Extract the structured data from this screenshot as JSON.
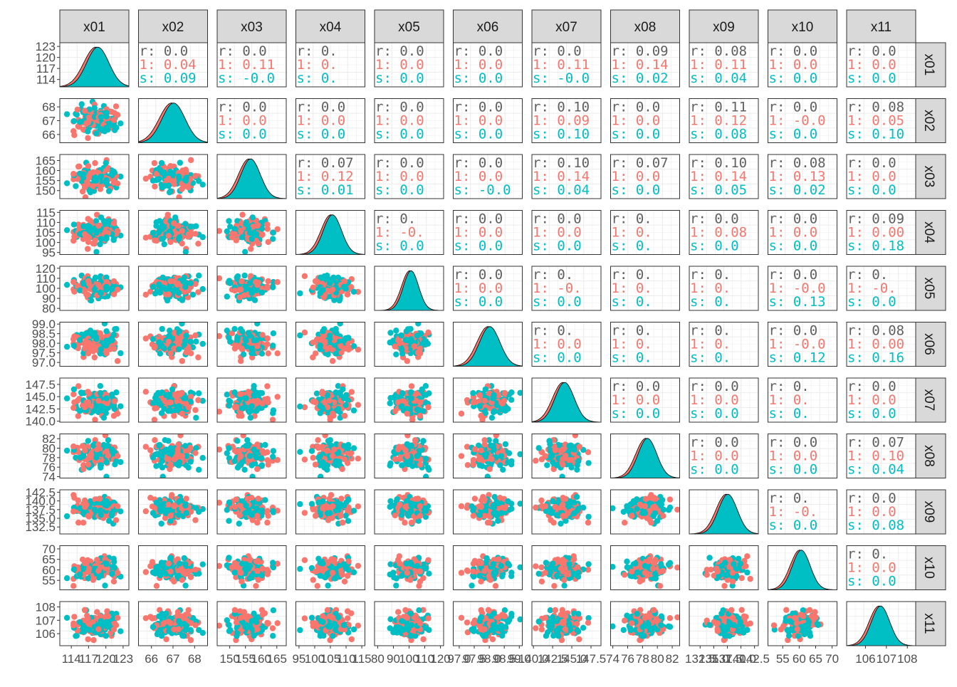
{
  "chart_data": {
    "type": "scatter-matrix",
    "variables": [
      "x01",
      "x02",
      "x03",
      "x04",
      "x05",
      "x06",
      "x07",
      "x08",
      "x09",
      "x10",
      "x11"
    ],
    "group_colors": {
      "overall": "#606060",
      "group1": "#F8766D",
      "group2": "#00BFC4"
    },
    "upper_labels": {
      "overall": "r:",
      "group1": "1:",
      "group2": "s:"
    },
    "axes": [
      {
        "var": "x01",
        "range": [
          112,
          124
        ],
        "ticks": [
          114,
          117,
          120,
          123
        ],
        "tick_labels": [
          "114",
          "117",
          "120",
          "123"
        ],
        "center": 118.5,
        "sd": 2.0
      },
      {
        "var": "x02",
        "range": [
          65.4,
          68.6
        ],
        "ticks": [
          66,
          67,
          68
        ],
        "tick_labels": [
          "66",
          "67",
          "68"
        ],
        "center": 67.0,
        "sd": 0.55
      },
      {
        "var": "x03",
        "range": [
          146,
          168
        ],
        "ticks": [
          150,
          155,
          160,
          165
        ],
        "tick_labels": [
          "150",
          "155",
          "160",
          "165"
        ],
        "center": 156.5,
        "sd": 3.2
      },
      {
        "var": "x04",
        "range": [
          94,
          116
        ],
        "ticks": [
          95,
          100,
          105,
          110,
          115
        ],
        "tick_labels": [
          "95",
          "100",
          "105",
          "110",
          "115"
        ],
        "center": 105.5,
        "sd": 3.0
      },
      {
        "var": "x05",
        "range": [
          78,
          122
        ],
        "ticks": [
          80,
          90,
          100,
          110,
          120
        ],
        "tick_labels": [
          "80",
          "90",
          "100",
          "110",
          "120"
        ],
        "center": 101.0,
        "sd": 5.0
      },
      {
        "var": "x06",
        "range": [
          96.8,
          99.1
        ],
        "ticks": [
          97.0,
          97.5,
          98.0,
          98.5,
          99.0
        ],
        "tick_labels": [
          "97.0",
          "97.5",
          "98.0",
          "98.5",
          "99.0"
        ],
        "center": 98.0,
        "sd": 0.35
      },
      {
        "var": "x07",
        "range": [
          139.8,
          148.8
        ],
        "ticks": [
          140,
          142.5,
          145,
          147.5
        ],
        "tick_labels": [
          "140.0",
          "142.5",
          "145.0",
          "147.5"
        ],
        "center": 144.0,
        "sd": 1.3
      },
      {
        "var": "x08",
        "range": [
          73.7,
          83.0
        ],
        "ticks": [
          74,
          76,
          78,
          80,
          82
        ],
        "tick_labels": [
          "74",
          "76",
          "78",
          "80",
          "82"
        ],
        "center": 78.6,
        "sd": 1.3
      },
      {
        "var": "x09",
        "range": [
          130.5,
          143.2
        ],
        "ticks": [
          132.5,
          135,
          137.5,
          140,
          142.5
        ],
        "tick_labels": [
          "132.5",
          "135.0",
          "137.5",
          "140.0",
          "142.5"
        ],
        "center": 137.5,
        "sd": 1.8
      },
      {
        "var": "x10",
        "range": [
          50.5,
          71.5
        ],
        "ticks": [
          55,
          60,
          65,
          70
        ],
        "tick_labels": [
          "55",
          "60",
          "65",
          "70"
        ],
        "center": 60.5,
        "sd": 2.8
      },
      {
        "var": "x11",
        "range": [
          105.1,
          108.4
        ],
        "ticks": [
          106,
          107,
          108
        ],
        "tick_labels": [
          "106",
          "107",
          "108"
        ],
        "center": 106.7,
        "sd": 0.45
      }
    ],
    "correlations": [
      {
        "row": 1,
        "col": 2,
        "overall": "0.0",
        "group1": "0.04",
        "group2": "0.09"
      },
      {
        "row": 1,
        "col": 3,
        "overall": "0.0",
        "group1": "0.11",
        "group2": "-0.0"
      },
      {
        "row": 1,
        "col": 4,
        "overall": "0.",
        "group1": "0.",
        "group2": "0."
      },
      {
        "row": 1,
        "col": 5,
        "overall": "0.0",
        "group1": "0.0",
        "group2": "0.0"
      },
      {
        "row": 1,
        "col": 6,
        "overall": "0.0",
        "group1": "0.0",
        "group2": "0.0"
      },
      {
        "row": 1,
        "col": 7,
        "overall": "0.0",
        "group1": "0.11",
        "group2": "-0.0"
      },
      {
        "row": 1,
        "col": 8,
        "overall": "0.09",
        "group1": "0.14",
        "group2": "0.02"
      },
      {
        "row": 1,
        "col": 9,
        "overall": "0.08",
        "group1": "0.11",
        "group2": "0.04"
      },
      {
        "row": 1,
        "col": 10,
        "overall": "0.0",
        "group1": "0.0",
        "group2": "0.0"
      },
      {
        "row": 1,
        "col": 11,
        "overall": "0.0",
        "group1": "0.0",
        "group2": "0.0"
      },
      {
        "row": 2,
        "col": 3,
        "overall": "0.0",
        "group1": "0.0",
        "group2": "0.0"
      },
      {
        "row": 2,
        "col": 4,
        "overall": "0.0",
        "group1": "0.0",
        "group2": "0.0"
      },
      {
        "row": 2,
        "col": 5,
        "overall": "0.0",
        "group1": "0.0",
        "group2": "0.0"
      },
      {
        "row": 2,
        "col": 6,
        "overall": "0.0",
        "group1": "0.0",
        "group2": "0.0"
      },
      {
        "row": 2,
        "col": 7,
        "overall": "0.10",
        "group1": "0.09",
        "group2": "0.10"
      },
      {
        "row": 2,
        "col": 8,
        "overall": "0.0",
        "group1": "0.0",
        "group2": "0.0"
      },
      {
        "row": 2,
        "col": 9,
        "overall": "0.11",
        "group1": "0.12",
        "group2": "0.08"
      },
      {
        "row": 2,
        "col": 10,
        "overall": "0.0",
        "group1": "-0.0",
        "group2": "0.0"
      },
      {
        "row": 2,
        "col": 11,
        "overall": "0.08",
        "group1": "0.05",
        "group2": "0.10"
      },
      {
        "row": 3,
        "col": 4,
        "overall": "0.07",
        "group1": "0.12",
        "group2": "0.01"
      },
      {
        "row": 3,
        "col": 5,
        "overall": "0.0",
        "group1": "0.0",
        "group2": "0.0"
      },
      {
        "row": 3,
        "col": 6,
        "overall": "0.0",
        "group1": "0.0",
        "group2": "-0.0"
      },
      {
        "row": 3,
        "col": 7,
        "overall": "0.10",
        "group1": "0.14",
        "group2": "0.04"
      },
      {
        "row": 3,
        "col": 8,
        "overall": "0.07",
        "group1": "0.0",
        "group2": "0.0"
      },
      {
        "row": 3,
        "col": 9,
        "overall": "0.10",
        "group1": "0.14",
        "group2": "0.05"
      },
      {
        "row": 3,
        "col": 10,
        "overall": "0.08",
        "group1": "0.13",
        "group2": "0.02"
      },
      {
        "row": 3,
        "col": 11,
        "overall": "0.0",
        "group1": "0.0",
        "group2": "0.0"
      },
      {
        "row": 4,
        "col": 5,
        "overall": "0.",
        "group1": "-0.",
        "group2": "0.0"
      },
      {
        "row": 4,
        "col": 6,
        "overall": "0.0",
        "group1": "0.0",
        "group2": "0.0"
      },
      {
        "row": 4,
        "col": 7,
        "overall": "0.0",
        "group1": "0.0",
        "group2": "0.0"
      },
      {
        "row": 4,
        "col": 8,
        "overall": "0.",
        "group1": "0.",
        "group2": "0."
      },
      {
        "row": 4,
        "col": 9,
        "overall": "0.0",
        "group1": "0.08",
        "group2": "0.0"
      },
      {
        "row": 4,
        "col": 10,
        "overall": "0.0",
        "group1": "0.0",
        "group2": "0.0"
      },
      {
        "row": 4,
        "col": 11,
        "overall": "0.09",
        "group1": "0.00",
        "group2": "0.18"
      },
      {
        "row": 5,
        "col": 6,
        "overall": "0.0",
        "group1": "0.0",
        "group2": "0.0"
      },
      {
        "row": 5,
        "col": 7,
        "overall": "0.",
        "group1": "-0.",
        "group2": "0.0"
      },
      {
        "row": 5,
        "col": 8,
        "overall": "0.",
        "group1": "0.",
        "group2": "0."
      },
      {
        "row": 5,
        "col": 9,
        "overall": "0.",
        "group1": "0.",
        "group2": "0."
      },
      {
        "row": 5,
        "col": 10,
        "overall": "0.0",
        "group1": "-0.0",
        "group2": "0.13"
      },
      {
        "row": 5,
        "col": 11,
        "overall": "0.",
        "group1": "-0.",
        "group2": "0.0"
      },
      {
        "row": 6,
        "col": 7,
        "overall": "0.",
        "group1": "0.0",
        "group2": "0.0"
      },
      {
        "row": 6,
        "col": 8,
        "overall": "0.",
        "group1": "0.",
        "group2": "0."
      },
      {
        "row": 6,
        "col": 9,
        "overall": "0.",
        "group1": "0.",
        "group2": "0."
      },
      {
        "row": 6,
        "col": 10,
        "overall": "0.0",
        "group1": "-0.0",
        "group2": "0.12"
      },
      {
        "row": 6,
        "col": 11,
        "overall": "0.08",
        "group1": "0.00",
        "group2": "0.16"
      },
      {
        "row": 7,
        "col": 8,
        "overall": "0.0",
        "group1": "0.0",
        "group2": "0.0"
      },
      {
        "row": 7,
        "col": 9,
        "overall": "0.0",
        "group1": "0.0",
        "group2": "0.0"
      },
      {
        "row": 7,
        "col": 10,
        "overall": "0.",
        "group1": "0.",
        "group2": "0."
      },
      {
        "row": 7,
        "col": 11,
        "overall": "0.0",
        "group1": "0.0",
        "group2": "0.0"
      },
      {
        "row": 8,
        "col": 9,
        "overall": "0.0",
        "group1": "0.0",
        "group2": "0.0"
      },
      {
        "row": 8,
        "col": 10,
        "overall": "0.0",
        "group1": "0.0",
        "group2": "0.0"
      },
      {
        "row": 8,
        "col": 11,
        "overall": "0.07",
        "group1": "0.10",
        "group2": "0.04"
      },
      {
        "row": 9,
        "col": 10,
        "overall": "0.",
        "group1": "-0.",
        "group2": "0.0"
      },
      {
        "row": 9,
        "col": 11,
        "overall": "0.0",
        "group1": "0.0",
        "group2": "0.08"
      },
      {
        "row": 10,
        "col": 11,
        "overall": "0.",
        "group1": "0.0",
        "group2": "0.0"
      }
    ],
    "grid": true,
    "legend": "none"
  }
}
